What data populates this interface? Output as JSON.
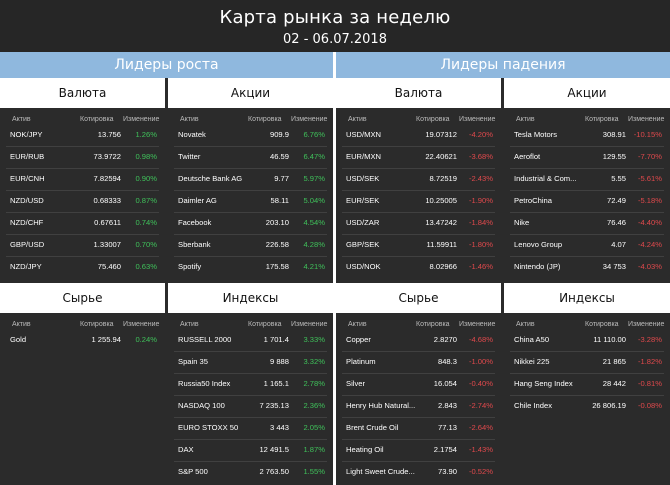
{
  "header": {
    "title": "Карта рынка за неделю",
    "dates": "02 - 06.07.2018"
  },
  "columns": {
    "asset": "Актив",
    "quote": "Котировка",
    "change": "Изменение"
  },
  "leaders_up": {
    "title": "Лидеры роста",
    "currency": {
      "title": "Валюта",
      "rows": [
        {
          "name": "NOK/JPY",
          "quote": "13.756",
          "change": "1.26%"
        },
        {
          "name": "EUR/RUB",
          "quote": "73.9722",
          "change": "0.98%"
        },
        {
          "name": "EUR/CNH",
          "quote": "7.82594",
          "change": "0.90%"
        },
        {
          "name": "NZD/USD",
          "quote": "0.68333",
          "change": "0.87%"
        },
        {
          "name": "NZD/CHF",
          "quote": "0.67611",
          "change": "0.74%"
        },
        {
          "name": "GBP/USD",
          "quote": "1.33007",
          "change": "0.70%"
        },
        {
          "name": "NZD/JPY",
          "quote": "75.460",
          "change": "0.63%"
        }
      ]
    },
    "stocks": {
      "title": "Акции",
      "rows": [
        {
          "name": "Novatek",
          "quote": "909.9",
          "change": "6.76%"
        },
        {
          "name": "Twitter",
          "quote": "46.59",
          "change": "6.47%"
        },
        {
          "name": "Deutsche Bank AG",
          "quote": "9.77",
          "change": "5.97%"
        },
        {
          "name": "Daimler AG",
          "quote": "58.11",
          "change": "5.04%"
        },
        {
          "name": "Facebook",
          "quote": "203.10",
          "change": "4.54%"
        },
        {
          "name": "Sberbank",
          "quote": "226.58",
          "change": "4.28%"
        },
        {
          "name": "Spotify",
          "quote": "175.58",
          "change": "4.21%"
        }
      ]
    },
    "commodities": {
      "title": "Сырье",
      "rows": [
        {
          "name": "Gold",
          "quote": "1 255.94",
          "change": "0.24%"
        }
      ]
    },
    "indices": {
      "title": "Индексы",
      "rows": [
        {
          "name": "RUSSELL 2000",
          "quote": "1 701.4",
          "change": "3.33%"
        },
        {
          "name": "Spain 35",
          "quote": "9 888",
          "change": "3.32%"
        },
        {
          "name": "Russia50 Index",
          "quote": "1 165.1",
          "change": "2.78%"
        },
        {
          "name": "NASDAQ 100",
          "quote": "7 235.13",
          "change": "2.36%"
        },
        {
          "name": "EURO STOXX 50",
          "quote": "3 443",
          "change": "2.05%"
        },
        {
          "name": "DAX",
          "quote": "12 491.5",
          "change": "1.87%"
        },
        {
          "name": "S&P 500",
          "quote": "2 763.50",
          "change": "1.55%"
        }
      ]
    }
  },
  "leaders_down": {
    "title": "Лидеры падения",
    "currency": {
      "title": "Валюта",
      "rows": [
        {
          "name": "USD/MXN",
          "quote": "19.07312",
          "change": "-4.20%"
        },
        {
          "name": "EUR/MXN",
          "quote": "22.40621",
          "change": "-3.68%"
        },
        {
          "name": "USD/SEK",
          "quote": "8.72519",
          "change": "-2.43%"
        },
        {
          "name": "EUR/SEK",
          "quote": "10.25005",
          "change": "-1.90%"
        },
        {
          "name": "USD/ZAR",
          "quote": "13.47242",
          "change": "-1.84%"
        },
        {
          "name": "GBP/SEK",
          "quote": "11.59911",
          "change": "-1.80%"
        },
        {
          "name": "USD/NOK",
          "quote": "8.02966",
          "change": "-1.46%"
        }
      ]
    },
    "stocks": {
      "title": "Акции",
      "rows": [
        {
          "name": "Tesla Motors",
          "quote": "308.91",
          "change": "-10.15%"
        },
        {
          "name": "Aeroflot",
          "quote": "129.55",
          "change": "-7.70%"
        },
        {
          "name": "Industrial & Com...",
          "quote": "5.55",
          "change": "-5.61%"
        },
        {
          "name": "PetroChina",
          "quote": "72.49",
          "change": "-5.18%"
        },
        {
          "name": "Nike",
          "quote": "76.46",
          "change": "-4.40%"
        },
        {
          "name": "Lenovo Group",
          "quote": "4.07",
          "change": "-4.24%"
        },
        {
          "name": "Nintendo (JP)",
          "quote": "34 753",
          "change": "-4.03%"
        }
      ]
    },
    "commodities": {
      "title": "Сырье",
      "rows": [
        {
          "name": "Copper",
          "quote": "2.8270",
          "change": "-4.68%"
        },
        {
          "name": "Platinum",
          "quote": "848.3",
          "change": "-1.00%"
        },
        {
          "name": "Silver",
          "quote": "16.054",
          "change": "-0.40%"
        },
        {
          "name": "Henry Hub Natural...",
          "quote": "2.843",
          "change": "-2.74%"
        },
        {
          "name": "Brent Crude Oil",
          "quote": "77.13",
          "change": "-2.64%"
        },
        {
          "name": "Heating Oil",
          "quote": "2.1754",
          "change": "-1.43%"
        },
        {
          "name": "Light Sweet Crude...",
          "quote": "73.90",
          "change": "-0.52%"
        }
      ]
    },
    "indices": {
      "title": "Индексы",
      "rows": [
        {
          "name": "China A50",
          "quote": "11 110.00",
          "change": "-3.28%"
        },
        {
          "name": "Nikkei 225",
          "quote": "21 865",
          "change": "-1.82%"
        },
        {
          "name": "Hang Seng Index",
          "quote": "28 442",
          "change": "-0.81%"
        },
        {
          "name": "Chile Index",
          "quote": "26 806.19",
          "change": "-0.08%"
        }
      ]
    }
  },
  "colors": {
    "positive": "#3fc05a",
    "negative": "#e0494c",
    "band": "#8fb8de",
    "background": "#2b2b2b"
  }
}
